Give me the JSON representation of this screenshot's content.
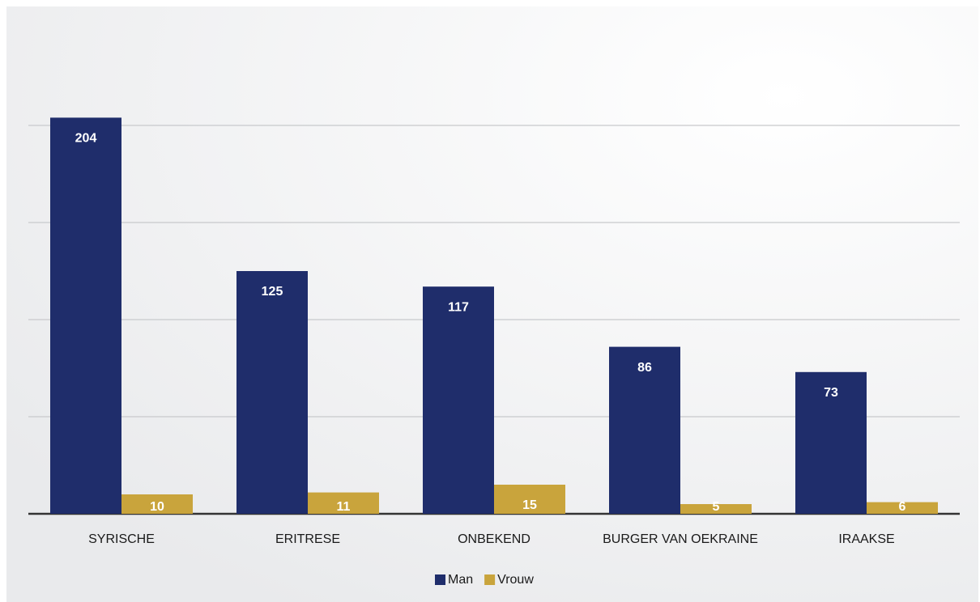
{
  "chart_data": {
    "type": "bar",
    "categories": [
      "SYRISCHE",
      "ERITRESE",
      "ONBEKEND",
      "BURGER VAN OEKRAINE",
      "IRAAKSE"
    ],
    "series": [
      {
        "name": "Man",
        "color": "#1f2d6b",
        "values": [
          204,
          125,
          117,
          86,
          73
        ]
      },
      {
        "name": "Vrouw",
        "color": "#c9a43c",
        "values": [
          10,
          11,
          15,
          5,
          6
        ]
      }
    ],
    "ylim": [
      0,
      250
    ],
    "yticks": [
      0,
      50,
      100,
      150,
      200
    ],
    "grid": true,
    "legend": "bottom"
  }
}
